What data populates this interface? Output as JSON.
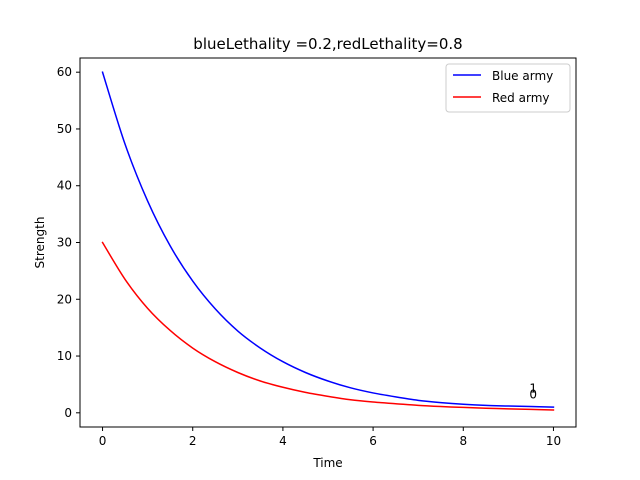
{
  "chart_data": {
    "type": "line",
    "title": "blueLethality =0.2,redLethality=0.8",
    "xlabel": "Time",
    "ylabel": "Strength",
    "xlim": [
      -0.5,
      10.5
    ],
    "ylim": [
      -2.5,
      62.5
    ],
    "xticks": [
      0,
      2,
      4,
      6,
      8,
      10
    ],
    "yticks": [
      0,
      10,
      20,
      30,
      40,
      50,
      60
    ],
    "grid": false,
    "legend": {
      "loc": "upper right"
    },
    "series": [
      {
        "name": "Blue army",
        "color": "#0000ff",
        "x": [
          0,
          0.5,
          1,
          1.5,
          2,
          2.5,
          3,
          3.5,
          4,
          4.5,
          5,
          5.5,
          6,
          6.5,
          7,
          7.5,
          8,
          8.5,
          9,
          9.5,
          10
        ],
        "y": [
          60,
          47.3,
          37.3,
          29.4,
          23.2,
          18.3,
          14.4,
          11.4,
          9.0,
          7.1,
          5.6,
          4.4,
          3.5,
          2.8,
          2.2,
          1.8,
          1.5,
          1.3,
          1.2,
          1.1,
          1.0
        ]
      },
      {
        "name": "Red army",
        "color": "#ff0000",
        "x": [
          0,
          0.5,
          1,
          1.5,
          2,
          2.5,
          3,
          3.5,
          4,
          4.5,
          5,
          5.5,
          6,
          6.5,
          7,
          7.5,
          8,
          8.5,
          9,
          9.5,
          10
        ],
        "y": [
          30,
          23.5,
          18.4,
          14.5,
          11.4,
          9.0,
          7.1,
          5.6,
          4.5,
          3.6,
          2.9,
          2.3,
          1.9,
          1.6,
          1.3,
          1.1,
          0.95,
          0.8,
          0.7,
          0.6,
          0.5
        ]
      }
    ],
    "annotations": [
      {
        "text": "1",
        "x": 9.55,
        "y": 4.3
      },
      {
        "text": "0",
        "x": 9.55,
        "y": 3.2
      }
    ]
  }
}
